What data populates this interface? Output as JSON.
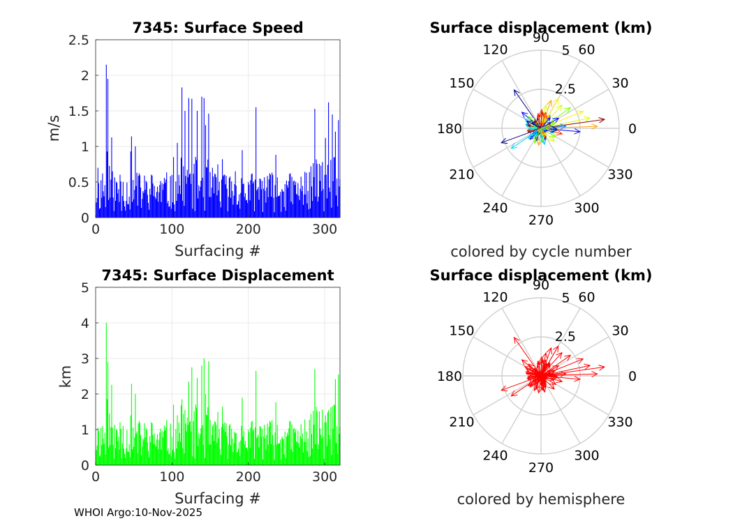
{
  "footer": "WHOI Argo:10-Nov-2025",
  "chart_data": [
    {
      "type": "bar",
      "title": "7345: Surface Speed",
      "xlabel": "Surfacing #",
      "ylabel": "m/s",
      "xlim": [
        0,
        320
      ],
      "ylim": [
        0,
        2.5
      ],
      "xticks": [
        "0",
        "100",
        "200",
        "300"
      ],
      "yticks": [
        "0",
        "0.5",
        "1",
        "1.5",
        "2",
        "2.5"
      ],
      "color": "#0000ff",
      "peaks": [
        {
          "x": 3,
          "y": 0.7
        },
        {
          "x": 9,
          "y": 0.62
        },
        {
          "x": 14,
          "y": 2.15
        },
        {
          "x": 16,
          "y": 1.95
        },
        {
          "x": 22,
          "y": 0.65
        },
        {
          "x": 36,
          "y": 0.5
        },
        {
          "x": 46,
          "y": 0.93
        },
        {
          "x": 54,
          "y": 0.63
        },
        {
          "x": 75,
          "y": 0.48
        },
        {
          "x": 100,
          "y": 0.6
        },
        {
          "x": 107,
          "y": 1.05
        },
        {
          "x": 113,
          "y": 1.83
        },
        {
          "x": 117,
          "y": 1.5
        },
        {
          "x": 122,
          "y": 1.68
        },
        {
          "x": 126,
          "y": 1.67
        },
        {
          "x": 133,
          "y": 1.5
        },
        {
          "x": 139,
          "y": 1.7
        },
        {
          "x": 142,
          "y": 1.68
        },
        {
          "x": 144,
          "y": 1.3
        },
        {
          "x": 153,
          "y": 0.7
        },
        {
          "x": 168,
          "y": 0.6
        },
        {
          "x": 183,
          "y": 0.65
        },
        {
          "x": 193,
          "y": 0.47
        },
        {
          "x": 210,
          "y": 1.55
        },
        {
          "x": 215,
          "y": 0.55
        },
        {
          "x": 232,
          "y": 0.6
        },
        {
          "x": 250,
          "y": 0.52
        },
        {
          "x": 276,
          "y": 0.63
        },
        {
          "x": 287,
          "y": 1.53
        },
        {
          "x": 295,
          "y": 0.73
        },
        {
          "x": 301,
          "y": 1.12
        },
        {
          "x": 305,
          "y": 1.62
        },
        {
          "x": 310,
          "y": 1.45
        },
        {
          "x": 318,
          "y": 1.37
        }
      ]
    },
    {
      "type": "bar",
      "title": "7345: Surface Displacement",
      "xlabel": "Surfacing #",
      "ylabel": "km",
      "xlim": [
        0,
        320
      ],
      "ylim": [
        0,
        5
      ],
      "xticks": [
        "0",
        "100",
        "200",
        "300"
      ],
      "yticks": [
        "0",
        "1",
        "2",
        "3",
        "4",
        "5"
      ],
      "color": "#00ff00",
      "peaks": [
        {
          "x": 3,
          "y": 1.05
        },
        {
          "x": 9,
          "y": 1.1
        },
        {
          "x": 14,
          "y": 4.0
        },
        {
          "x": 16,
          "y": 2.9
        },
        {
          "x": 22,
          "y": 1.05
        },
        {
          "x": 36,
          "y": 1.1
        },
        {
          "x": 46,
          "y": 1.4
        },
        {
          "x": 54,
          "y": 0.95
        },
        {
          "x": 75,
          "y": 0.85
        },
        {
          "x": 100,
          "y": 0.8
        },
        {
          "x": 107,
          "y": 1.4
        },
        {
          "x": 113,
          "y": 1.85
        },
        {
          "x": 117,
          "y": 1.55
        },
        {
          "x": 122,
          "y": 2.35
        },
        {
          "x": 126,
          "y": 2.75
        },
        {
          "x": 133,
          "y": 2.45
        },
        {
          "x": 139,
          "y": 2.8
        },
        {
          "x": 142,
          "y": 3.0
        },
        {
          "x": 144,
          "y": 2.0
        },
        {
          "x": 153,
          "y": 1.1
        },
        {
          "x": 168,
          "y": 1.0
        },
        {
          "x": 183,
          "y": 0.9
        },
        {
          "x": 193,
          "y": 0.8
        },
        {
          "x": 210,
          "y": 2.65
        },
        {
          "x": 215,
          "y": 1.1
        },
        {
          "x": 232,
          "y": 0.85
        },
        {
          "x": 250,
          "y": 0.8
        },
        {
          "x": 276,
          "y": 0.95
        },
        {
          "x": 287,
          "y": 2.7
        },
        {
          "x": 295,
          "y": 0.85
        },
        {
          "x": 301,
          "y": 1.4
        },
        {
          "x": 305,
          "y": 1.55
        },
        {
          "x": 310,
          "y": 1.65
        },
        {
          "x": 318,
          "y": 2.55
        }
      ]
    },
    {
      "type": "polar-compass",
      "title": "Surface displacement (km)",
      "caption": "colored by cycle number",
      "rlim": [
        0,
        5
      ],
      "rticks": [
        "2.5",
        "5"
      ],
      "angle_labels": [
        "0",
        "30",
        "60",
        "90",
        "120",
        "150",
        "180",
        "210",
        "240",
        "270",
        "300",
        "330"
      ],
      "colors": [
        "#00008b",
        "#0000ff",
        "#0080ff",
        "#00d0ff",
        "#00ffaa",
        "#80ff00",
        "#d8ff00",
        "#ffee00",
        "#ffa000",
        "#ff3000",
        "#c00000",
        "#8b0000"
      ],
      "arrows": [
        {
          "theta": 8,
          "r": 4.1,
          "c": 11
        },
        {
          "theta": 2,
          "r": 3.6,
          "c": 8
        },
        {
          "theta": 12,
          "r": 3.2,
          "c": 6
        },
        {
          "theta": 22,
          "r": 2.9,
          "c": 7
        },
        {
          "theta": 35,
          "r": 2.3,
          "c": 5
        },
        {
          "theta": 48,
          "r": 2.0,
          "c": 6
        },
        {
          "theta": 60,
          "r": 2.2,
          "c": 7
        },
        {
          "theta": 70,
          "r": 1.9,
          "c": 8
        },
        {
          "theta": 78,
          "r": 1.5,
          "c": 6
        },
        {
          "theta": 88,
          "r": 1.2,
          "c": 9
        },
        {
          "theta": 100,
          "r": 0.9,
          "c": 10
        },
        {
          "theta": 125,
          "r": 3.0,
          "c": 0
        },
        {
          "theta": 140,
          "r": 1.6,
          "c": 1
        },
        {
          "theta": 150,
          "r": 1.2,
          "c": 3
        },
        {
          "theta": 165,
          "r": 1.0,
          "c": 2
        },
        {
          "theta": 190,
          "r": 0.9,
          "c": 9
        },
        {
          "theta": 200,
          "r": 2.7,
          "c": 0
        },
        {
          "theta": 214,
          "r": 2.3,
          "c": 3
        },
        {
          "theta": 225,
          "r": 1.0,
          "c": 1
        },
        {
          "theta": 245,
          "r": 0.8,
          "c": 10
        },
        {
          "theta": 262,
          "r": 1.1,
          "c": 8
        },
        {
          "theta": 275,
          "r": 0.9,
          "c": 4
        },
        {
          "theta": 290,
          "r": 0.8,
          "c": 1
        },
        {
          "theta": 315,
          "r": 1.2,
          "c": 6
        },
        {
          "theta": 330,
          "r": 1.1,
          "c": 5
        },
        {
          "theta": 345,
          "r": 1.4,
          "c": 9
        },
        {
          "theta": 355,
          "r": 2.5,
          "c": 1
        },
        {
          "theta": 5,
          "r": 1.6,
          "c": 2
        },
        {
          "theta": 30,
          "r": 1.3,
          "c": 1
        },
        {
          "theta": 55,
          "r": 1.0,
          "c": 0
        },
        {
          "theta": 110,
          "r": 0.7,
          "c": 11
        },
        {
          "theta": 180,
          "r": 0.7,
          "c": 4
        },
        {
          "theta": 235,
          "r": 0.6,
          "c": 2
        },
        {
          "theta": 300,
          "r": 0.6,
          "c": 7
        }
      ]
    },
    {
      "type": "polar-compass",
      "title": "Surface displacement (km)",
      "caption": "colored by hemisphere",
      "rlim": [
        0,
        5
      ],
      "rticks": [
        "2.5",
        "5"
      ],
      "angle_labels": [
        "0",
        "30",
        "60",
        "90",
        "120",
        "150",
        "180",
        "210",
        "240",
        "270",
        "300",
        "330"
      ],
      "color": "#ff0000",
      "arrows": [
        {
          "theta": 8,
          "r": 4.1
        },
        {
          "theta": 2,
          "r": 3.6
        },
        {
          "theta": 12,
          "r": 3.2
        },
        {
          "theta": 22,
          "r": 2.9
        },
        {
          "theta": 35,
          "r": 2.3
        },
        {
          "theta": 48,
          "r": 2.0
        },
        {
          "theta": 60,
          "r": 2.2
        },
        {
          "theta": 70,
          "r": 1.9
        },
        {
          "theta": 78,
          "r": 1.5
        },
        {
          "theta": 88,
          "r": 1.2
        },
        {
          "theta": 100,
          "r": 0.9
        },
        {
          "theta": 125,
          "r": 3.0
        },
        {
          "theta": 140,
          "r": 1.6
        },
        {
          "theta": 150,
          "r": 1.2
        },
        {
          "theta": 165,
          "r": 1.0
        },
        {
          "theta": 190,
          "r": 0.9
        },
        {
          "theta": 200,
          "r": 2.7
        },
        {
          "theta": 214,
          "r": 2.3
        },
        {
          "theta": 225,
          "r": 1.0
        },
        {
          "theta": 245,
          "r": 0.8
        },
        {
          "theta": 262,
          "r": 1.1
        },
        {
          "theta": 275,
          "r": 0.9
        },
        {
          "theta": 290,
          "r": 0.8
        },
        {
          "theta": 315,
          "r": 1.2
        },
        {
          "theta": 330,
          "r": 1.1
        },
        {
          "theta": 345,
          "r": 1.4
        },
        {
          "theta": 355,
          "r": 2.5
        },
        {
          "theta": 5,
          "r": 1.6
        },
        {
          "theta": 30,
          "r": 1.3
        },
        {
          "theta": 55,
          "r": 1.0
        },
        {
          "theta": 110,
          "r": 0.7
        },
        {
          "theta": 180,
          "r": 0.7
        },
        {
          "theta": 235,
          "r": 0.6
        },
        {
          "theta": 300,
          "r": 0.6
        }
      ]
    }
  ]
}
